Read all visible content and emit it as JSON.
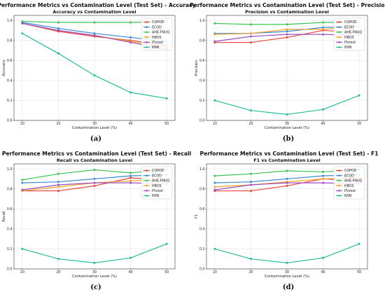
{
  "colors": {
    "COPOD": "#e8413d",
    "ECOD": "#3c87d8",
    "AHE-FNUQ": "#39c452",
    "HBOS": "#f4a428",
    "IForest": "#9b4fc2",
    "KNN": "#22bb99"
  },
  "chart_data": [
    {
      "type": "line",
      "panel": "(a)",
      "suptitle": "Performance Metrics vs Contamination Level (Test Set) - Accuracy",
      "title": "Accuracy vs Contamination Level",
      "xlabel": "Contamination Level (%)",
      "ylabel": "Accuracy",
      "x": [
        10,
        20,
        30,
        40,
        50
      ],
      "ylim": [
        0.0,
        1.05
      ],
      "yticks": [
        "0.0",
        "0.2",
        "0.4",
        "0.6",
        "0.8",
        "1.0"
      ],
      "legend": "top-right",
      "grid": true,
      "series": [
        {
          "name": "COPOD",
          "values": [
            0.97,
            0.89,
            0.84,
            0.8,
            0.75
          ]
        },
        {
          "name": "ECOD",
          "values": [
            0.98,
            0.92,
            0.87,
            0.83,
            0.79
          ]
        },
        {
          "name": "AHE-FNUQ",
          "values": [
            0.99,
            0.98,
            0.98,
            0.98,
            0.99
          ]
        },
        {
          "name": "HBOS",
          "values": [
            0.97,
            0.9,
            0.85,
            0.79,
            0.73
          ]
        },
        {
          "name": "IForest",
          "values": [
            0.97,
            0.9,
            0.85,
            0.78,
            0.71
          ]
        },
        {
          "name": "KNN",
          "values": [
            0.87,
            0.67,
            0.45,
            0.28,
            0.22
          ]
        }
      ]
    },
    {
      "type": "line",
      "panel": "(b)",
      "suptitle": "Performance Metrics vs Contamination Level (Test Set) - Precision",
      "title": "Precision vs Contamination Level",
      "xlabel": "Contamination Level (%)",
      "ylabel": "Precision",
      "x": [
        10,
        20,
        30,
        40,
        50
      ],
      "ylim": [
        0.0,
        1.05
      ],
      "yticks": [
        "0.0",
        "0.2",
        "0.4",
        "0.6",
        "0.8",
        "1.0"
      ],
      "legend": "top-right",
      "grid": true,
      "series": [
        {
          "name": "COPOD",
          "values": [
            0.78,
            0.78,
            0.83,
            0.9,
            0.88
          ]
        },
        {
          "name": "ECOD",
          "values": [
            0.87,
            0.87,
            0.89,
            0.93,
            0.94
          ]
        },
        {
          "name": "AHE-FNUQ",
          "values": [
            0.97,
            0.96,
            0.96,
            0.98,
            0.98
          ]
        },
        {
          "name": "HBOS",
          "values": [
            0.86,
            0.87,
            0.91,
            0.91,
            0.94
          ]
        },
        {
          "name": "IForest",
          "values": [
            0.79,
            0.84,
            0.86,
            0.86,
            0.85
          ]
        },
        {
          "name": "KNN",
          "values": [
            0.2,
            0.1,
            0.06,
            0.11,
            0.25
          ]
        }
      ]
    },
    {
      "type": "line",
      "panel": "(c)",
      "suptitle": "Performance Metrics vs Contamination Level (Test Set) - Recall",
      "title": "Recall vs Contamination Level",
      "xlabel": "Contamination Level (%)",
      "ylabel": "Recall",
      "x": [
        10,
        20,
        30,
        40,
        50
      ],
      "ylim": [
        0.0,
        1.05
      ],
      "yticks": [
        "0.0",
        "0.2",
        "0.4",
        "0.6",
        "0.8",
        "1.0"
      ],
      "legend": "top-right",
      "grid": true,
      "series": [
        {
          "name": "COPOD",
          "values": [
            0.78,
            0.78,
            0.83,
            0.91,
            0.88
          ]
        },
        {
          "name": "ECOD",
          "values": [
            0.86,
            0.87,
            0.9,
            0.93,
            0.94
          ]
        },
        {
          "name": "AHE-FNUQ",
          "values": [
            0.89,
            0.95,
            0.99,
            0.96,
            0.99
          ]
        },
        {
          "name": "HBOS",
          "values": [
            0.78,
            0.82,
            0.86,
            0.88,
            0.89
          ]
        },
        {
          "name": "IForest",
          "values": [
            0.79,
            0.84,
            0.86,
            0.86,
            0.85
          ]
        },
        {
          "name": "KNN",
          "values": [
            0.2,
            0.1,
            0.06,
            0.11,
            0.25
          ]
        }
      ]
    },
    {
      "type": "line",
      "panel": "(d)",
      "suptitle": "Performance Metrics vs Contamination Level (Test Set) - F1",
      "title": "F1 vs Contamination Level",
      "xlabel": "Contamination Level (%)",
      "ylabel": "F1",
      "x": [
        10,
        20,
        30,
        40,
        50
      ],
      "ylim": [
        0.0,
        1.05
      ],
      "yticks": [
        "0.0",
        "0.2",
        "0.4",
        "0.6",
        "0.8",
        "1.0"
      ],
      "legend": "top-right",
      "grid": true,
      "series": [
        {
          "name": "COPOD",
          "values": [
            0.78,
            0.78,
            0.83,
            0.9,
            0.88
          ]
        },
        {
          "name": "ECOD",
          "values": [
            0.86,
            0.87,
            0.9,
            0.93,
            0.94
          ]
        },
        {
          "name": "AHE-FNUQ",
          "values": [
            0.93,
            0.95,
            0.98,
            0.97,
            0.99
          ]
        },
        {
          "name": "HBOS",
          "values": [
            0.82,
            0.84,
            0.87,
            0.9,
            0.91
          ]
        },
        {
          "name": "IForest",
          "values": [
            0.79,
            0.84,
            0.86,
            0.86,
            0.85
          ]
        },
        {
          "name": "KNN",
          "values": [
            0.2,
            0.1,
            0.06,
            0.11,
            0.25
          ]
        }
      ]
    }
  ]
}
